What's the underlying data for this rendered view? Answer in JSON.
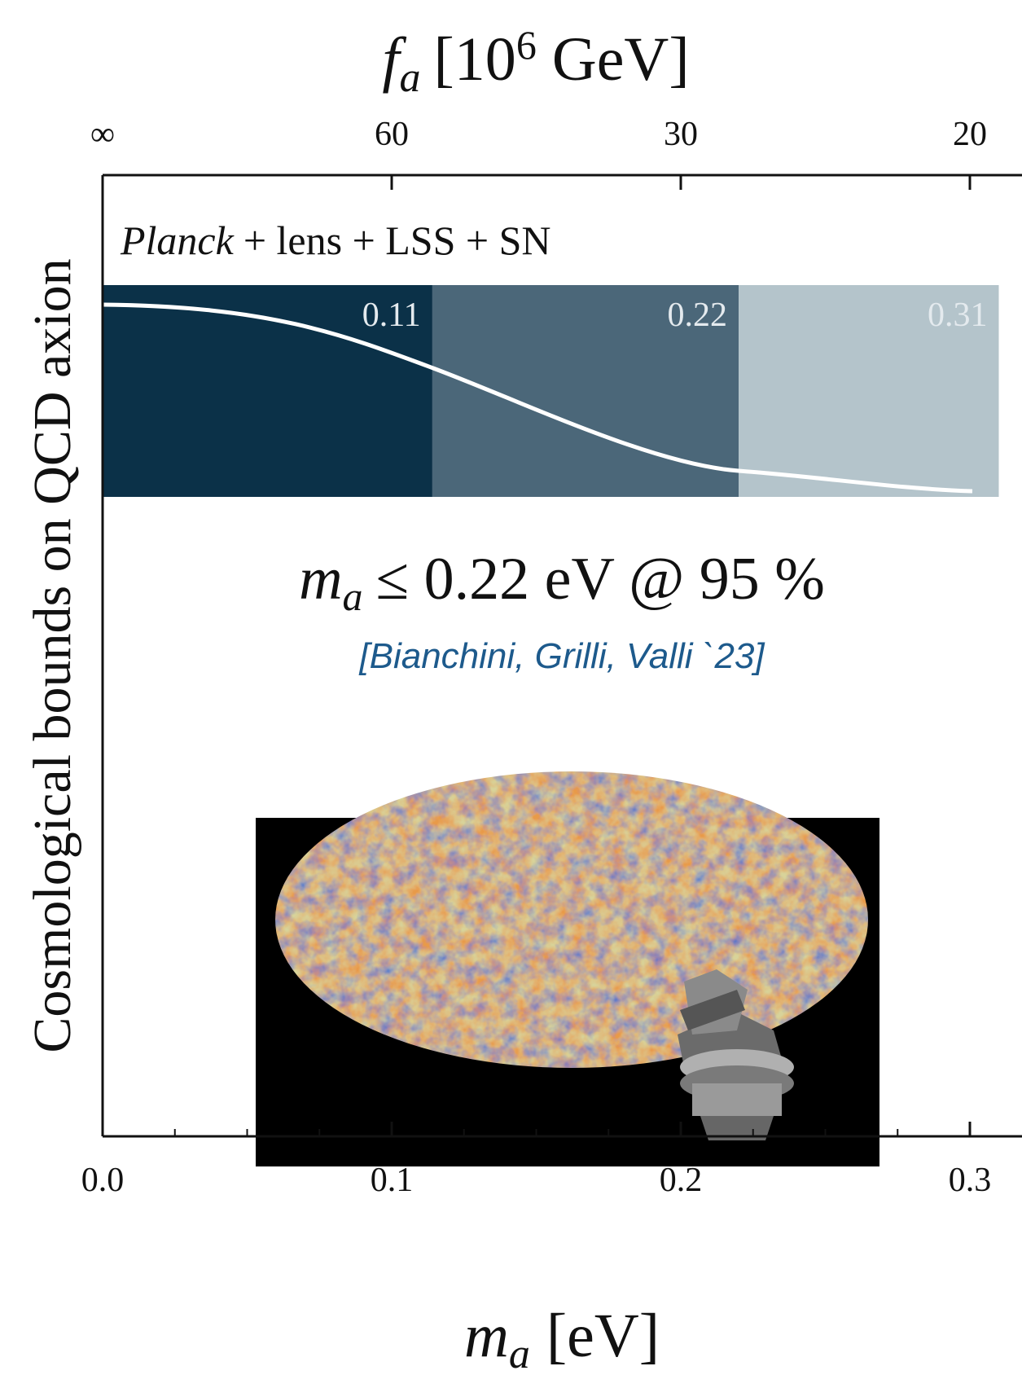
{
  "chart_data": {
    "type": "bar",
    "orientation": "horizontal",
    "x2label": {
      "symbol": "f",
      "subscript": "a",
      "open": "[10",
      "exponent": "6",
      "close": " GeV]"
    },
    "xlabel": {
      "symbol": "m",
      "subscript": "a",
      "unit": "[eV]"
    },
    "ylabel": "Cosmological bounds on QCD axion",
    "annotation": {
      "italic": "Planck",
      "rest": "+ lens + LSS + SN"
    },
    "result": {
      "symbol": "m",
      "subscript": "a",
      "rest": "≤ 0.22 eV @ 95 %"
    },
    "citation": "[Bianchini, Grilli, Valli `23]",
    "values": [
      0.114,
      0.22,
      0.31
    ],
    "value_labels": [
      "0.11",
      "0.22",
      "0.31"
    ],
    "colors": [
      "#0b3148",
      "#4b6779",
      "#b4c4cb"
    ],
    "xlim": [
      0,
      0.318
    ],
    "xticks": [
      {
        "value": 0,
        "label": "0.0"
      },
      0.1,
      0.2,
      0.3
    ],
    "xminorticks": [
      0.025,
      0.05,
      0.075,
      0.125,
      0.15,
      0.175,
      0.225,
      0.25,
      0.275
    ],
    "x2ticks": [
      {
        "value": 0,
        "label": "∞"
      },
      {
        "value": 0.1,
        "label": "60"
      },
      {
        "value": 0.2,
        "label": "30"
      },
      {
        "value": 0.3,
        "label": "20"
      }
    ]
  }
}
